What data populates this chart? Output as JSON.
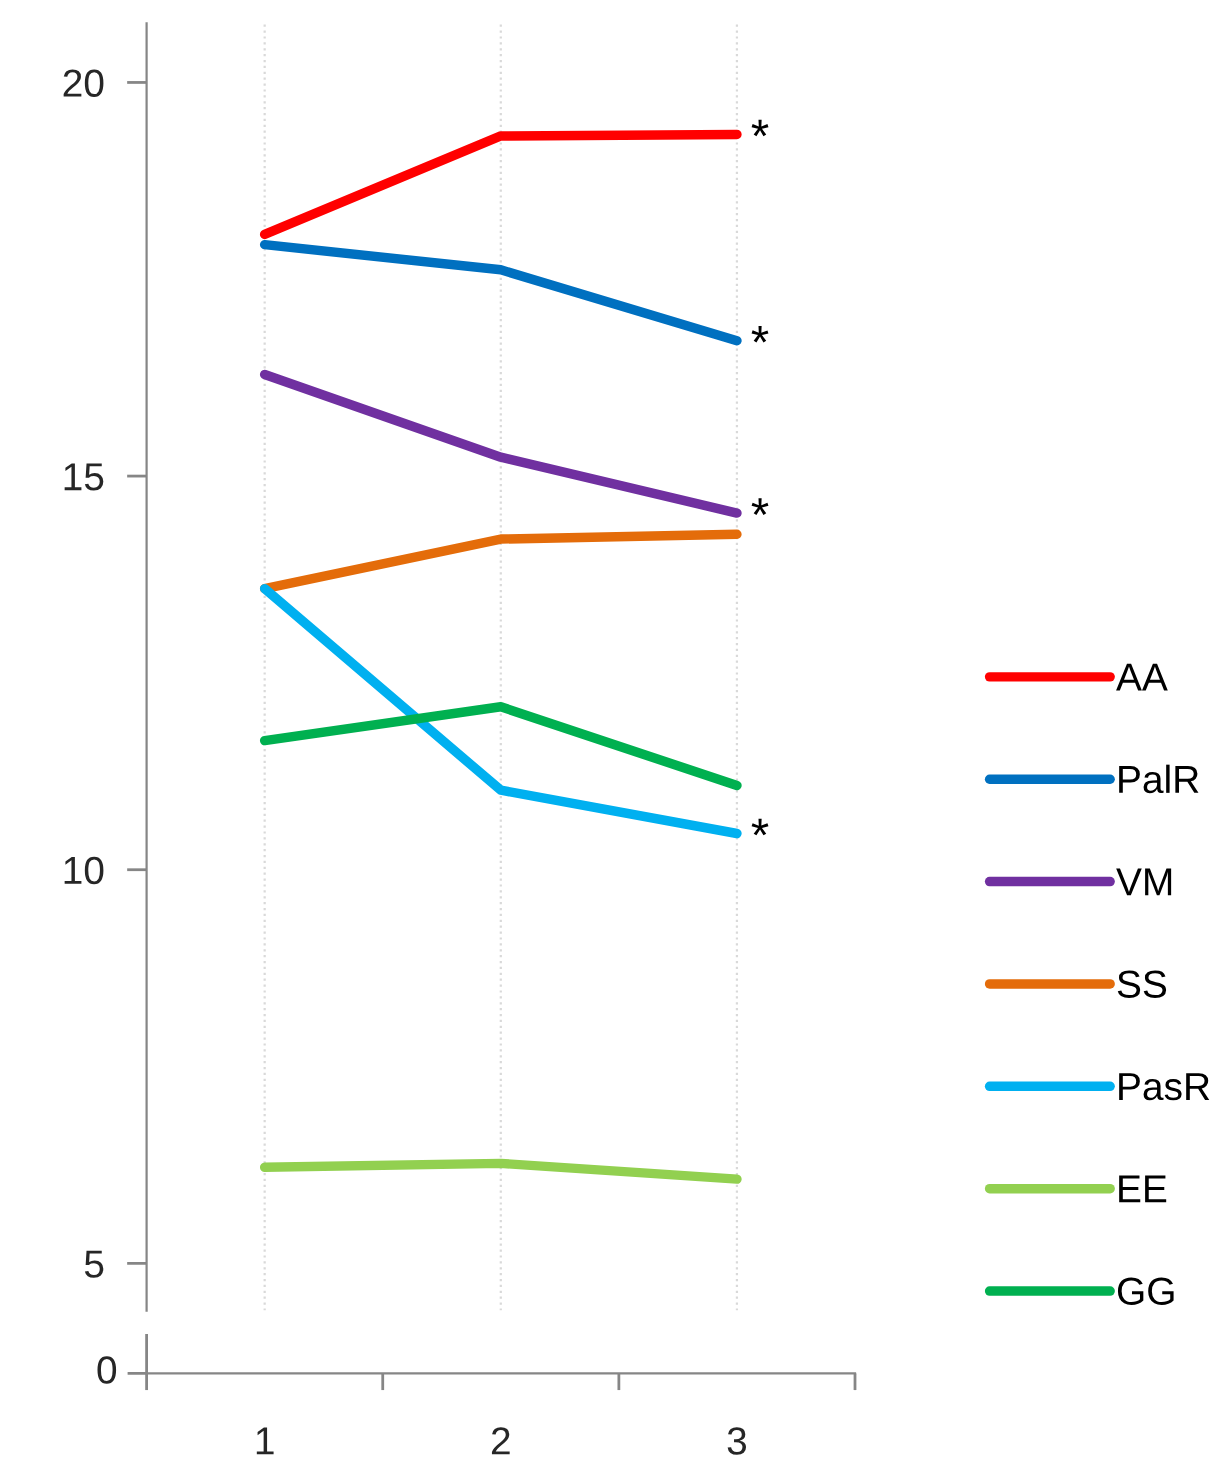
{
  "chart_data": {
    "type": "line",
    "categories": [
      "1",
      "2",
      "3"
    ],
    "ylim": [
      4.4,
      20.75
    ],
    "yticks": [
      5,
      10,
      15,
      20
    ],
    "grid": "x",
    "legend": "right",
    "line_style": "solid",
    "series": [
      {
        "name": "AA",
        "color": "#ff0000",
        "values": [
          18.07,
          19.32,
          19.34
        ]
      },
      {
        "name": "PalR",
        "color": "#0070c0",
        "values": [
          17.94,
          17.62,
          16.72
        ]
      },
      {
        "name": "VM",
        "color": "#7030a0",
        "values": [
          16.29,
          15.24,
          14.53
        ]
      },
      {
        "name": "SS",
        "color": "#e46c0a",
        "values": [
          13.57,
          14.2,
          14.26
        ]
      },
      {
        "name": "PasR",
        "color": "#00b0f0",
        "values": [
          13.57,
          11.01,
          10.46
        ]
      },
      {
        "name": "EE",
        "color": "#92d050",
        "values": [
          6.22,
          6.27,
          6.07
        ]
      },
      {
        "name": "GG",
        "color": "#00b050",
        "values": [
          11.64,
          12.07,
          11.07
        ]
      }
    ],
    "annotations": [
      {
        "text": "*",
        "x": "3",
        "y": 19.34
      },
      {
        "text": "*",
        "x": "3",
        "y": 16.72
      },
      {
        "text": "*",
        "x": "3",
        "y": 14.53
      },
      {
        "text": "*",
        "x": "3",
        "y": 10.46
      },
      "0"
    ]
  }
}
